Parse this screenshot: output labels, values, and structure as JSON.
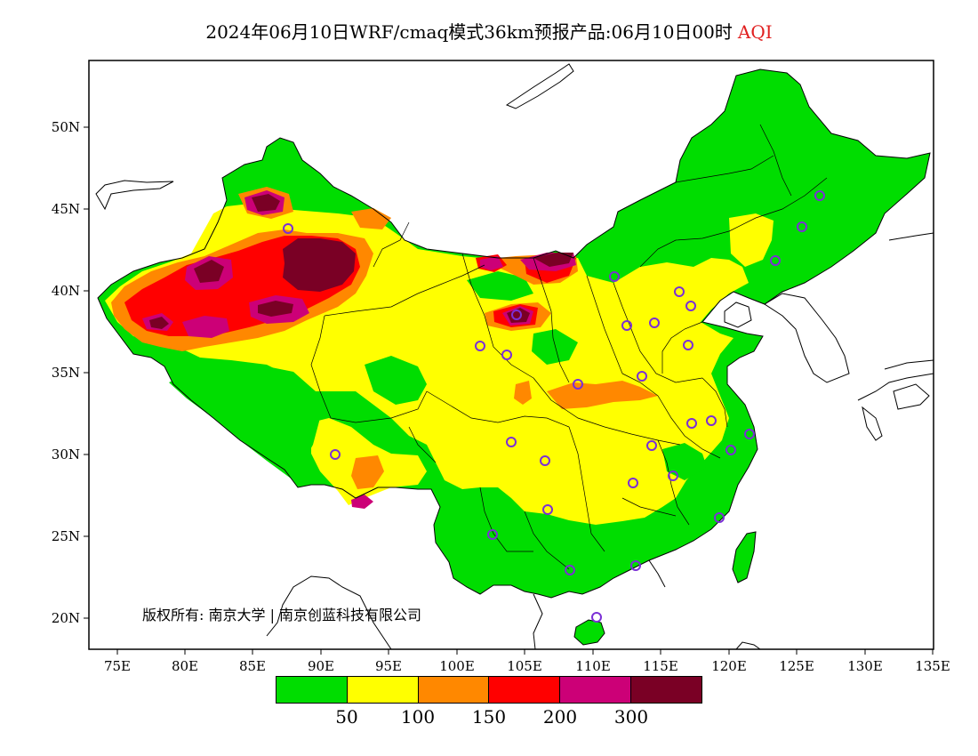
{
  "title": {
    "text": "2024年06月10日WRF/cmaq模式36km预报产品:06月10日00时",
    "variable": "AQI",
    "variable_color": "#e02020"
  },
  "axes": {
    "y_ticks": [
      "50N",
      "45N",
      "40N",
      "35N",
      "30N",
      "25N",
      "20N"
    ],
    "x_ticks": [
      "75E",
      "80E",
      "85E",
      "90E",
      "95E",
      "100E",
      "105E",
      "110E",
      "115E",
      "120E",
      "125E",
      "130E",
      "135E"
    ]
  },
  "copyright": "版权所有: 南京大学 | 南京创蓝科技有限公司",
  "legend": {
    "colors": [
      "#00dd00",
      "#ffff00",
      "#ff8800",
      "#ff0000",
      "#cc0077",
      "#7a0025"
    ],
    "labels": [
      "50",
      "100",
      "150",
      "200",
      "300"
    ]
  },
  "palette": {
    "good": "#00dd00",
    "moderate": "#ffff00",
    "usg": "#ff8800",
    "unhealthy": "#ff0000",
    "very_unhealthy": "#cc0077",
    "hazardous": "#7a0025",
    "station_marker": "#7b2fd6"
  }
}
